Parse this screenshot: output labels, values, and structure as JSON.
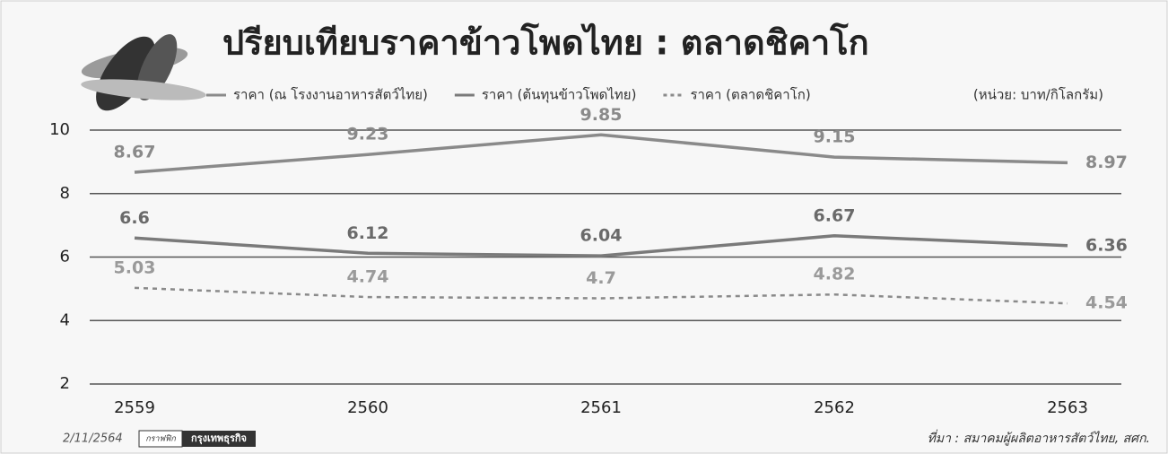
{
  "chart_data": {
    "type": "line",
    "title": "ปรียบเทียบราคาข้าวโพดไทย : ตลาดชิคาโก",
    "unit_note": "(หน่วย: บาท/กิโลกรัม)",
    "categories": [
      "2559",
      "2560",
      "2561",
      "2562",
      "2563"
    ],
    "series": [
      {
        "name": "ราคา (ณ โรงงานอาหารสัตว์ไทย)",
        "color": "#8a8a8a",
        "dash": false,
        "label_color": "#8a8a8a",
        "values": [
          8.67,
          9.23,
          9.85,
          9.15,
          8.97
        ]
      },
      {
        "name": "ราคา (ต้นทุนข้าวโพดไทย)",
        "color": "#7a7a7a",
        "dash": false,
        "label_color": "#6a6a6a",
        "values": [
          6.6,
          6.12,
          6.04,
          6.67,
          6.36
        ]
      },
      {
        "name": "ราคา (ตลาดชิคาโก)",
        "color": "#8a8a8a",
        "dash": true,
        "label_color": "#9a9a9a",
        "values": [
          5.03,
          4.74,
          4.7,
          4.82,
          4.54
        ]
      }
    ],
    "ylim": [
      2,
      10
    ],
    "yticks": [
      2,
      4,
      6,
      8,
      10
    ],
    "grid": true,
    "date": "2/11/2564",
    "credit_prefix": "กราฟฟิก",
    "credit": "กรุงเทพธุรกิจ",
    "source": "ที่มา : สมาคมผู้ผลิตอาหารสัตว์ไทย, สศก."
  }
}
